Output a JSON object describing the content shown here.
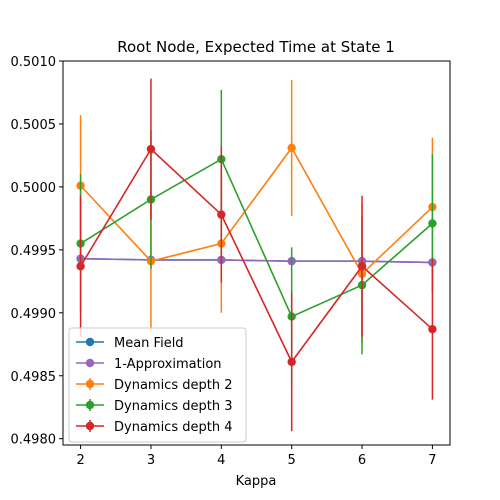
{
  "chart_data": {
    "type": "line",
    "title": "Root Node, Expected Time at State 1",
    "xlabel": "Kappa",
    "ylabel": "",
    "x": [
      2,
      3,
      4,
      5,
      6,
      7
    ],
    "xlim": [
      1.75,
      7.25
    ],
    "ylim": [
      0.49795,
      0.501
    ],
    "x_ticks": [
      2,
      3,
      4,
      5,
      6,
      7
    ],
    "y_ticks": [
      0.498,
      0.4985,
      0.499,
      0.4995,
      0.5,
      0.5005,
      0.501
    ],
    "y_tick_labels": [
      "0.4980",
      "0.4985",
      "0.4990",
      "0.4995",
      "0.5000",
      "0.5005",
      "0.5010"
    ],
    "grid": false,
    "legend_position": "lower-left",
    "series": [
      {
        "name": "Mean Field",
        "color": "#1f77b4",
        "values": [
          0.49943,
          0.49942,
          0.49942,
          0.49941,
          0.49941,
          0.4994
        ],
        "errors": null
      },
      {
        "name": "1-Approximation",
        "color": "#9467bd",
        "values": [
          0.49943,
          0.49942,
          0.49942,
          0.49941,
          0.49941,
          0.4994
        ],
        "errors": null
      },
      {
        "name": "Dynamics depth 2",
        "color": "#ff7f0e",
        "values": [
          0.50001,
          0.49941,
          0.49955,
          0.50031,
          0.49931,
          0.49984
        ],
        "errors": [
          0.00056,
          0.00056,
          0.00055,
          0.00054,
          0.00055,
          0.00055
        ]
      },
      {
        "name": "Dynamics depth 3",
        "color": "#2ca02c",
        "values": [
          0.49955,
          0.4999,
          0.50022,
          0.49897,
          0.49922,
          0.49971
        ],
        "errors": [
          0.00055,
          0.00055,
          0.00055,
          0.00055,
          0.00055,
          0.00055
        ]
      },
      {
        "name": "Dynamics depth 4",
        "color": "#d62728",
        "values": [
          0.49937,
          0.5003,
          0.49978,
          0.49861,
          0.49937,
          0.49887
        ],
        "errors": [
          0.00056,
          0.00056,
          0.00054,
          0.00055,
          0.00056,
          0.00056
        ]
      }
    ]
  }
}
